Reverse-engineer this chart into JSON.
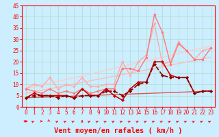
{
  "xlabel": "Vent moyen/en rafales ( km/h )",
  "xlim": [
    -0.5,
    23.5
  ],
  "ylim": [
    0,
    45
  ],
  "yticks": [
    0,
    5,
    10,
    15,
    20,
    25,
    30,
    35,
    40,
    45
  ],
  "xticks": [
    0,
    1,
    2,
    3,
    4,
    5,
    6,
    7,
    8,
    9,
    10,
    11,
    12,
    13,
    14,
    15,
    16,
    17,
    18,
    19,
    20,
    21,
    22,
    23
  ],
  "bg_color": "#cceeff",
  "grid_color": "#aaddcc",
  "series": [
    {
      "x": [
        0,
        1,
        2,
        3,
        4,
        5,
        6,
        7,
        8,
        9,
        10,
        11,
        12,
        13,
        14,
        15,
        16,
        17,
        18,
        19,
        20,
        21,
        22,
        23
      ],
      "y": [
        8,
        10,
        9,
        13,
        8,
        10,
        9,
        13,
        9,
        9,
        10,
        10,
        20,
        14,
        20,
        23,
        37,
        19,
        20,
        29,
        25,
        21,
        25,
        26
      ],
      "color": "#ffaaaa",
      "lw": 1.0,
      "marker": "o",
      "ms": 2.0,
      "zorder": 3,
      "dashed": false
    },
    {
      "x": [
        0,
        1,
        2,
        3,
        4,
        5,
        6,
        7,
        8,
        9,
        10,
        11,
        12,
        13,
        14,
        15,
        16,
        17,
        18,
        19,
        20,
        21,
        22,
        23
      ],
      "y": [
        8,
        7,
        6,
        8,
        6,
        7,
        6,
        8,
        6,
        7,
        8,
        8,
        17,
        17,
        16,
        22,
        41,
        33,
        19,
        28,
        25,
        21,
        21,
        26
      ],
      "color": "#ff7777",
      "lw": 1.0,
      "marker": "o",
      "ms": 2.0,
      "zorder": 3,
      "dashed": false
    },
    {
      "x": [
        0,
        1,
        2,
        3,
        4,
        5,
        6,
        7,
        8,
        9,
        10,
        11,
        12,
        13,
        14,
        15,
        16,
        17,
        18,
        19,
        20,
        21,
        22,
        23
      ],
      "y": [
        4,
        6,
        5,
        5,
        5,
        5,
        4,
        8,
        5,
        5,
        8,
        5,
        3,
        8,
        11,
        11,
        20,
        20,
        14,
        13,
        13,
        6,
        7,
        7
      ],
      "color": "#cc0000",
      "lw": 1.2,
      "marker": "D",
      "ms": 2.0,
      "zorder": 4,
      "dashed": false
    },
    {
      "x": [
        0,
        1,
        2,
        3,
        4,
        5,
        6,
        7,
        8,
        9,
        10,
        11,
        12,
        13,
        14,
        15,
        16,
        17,
        18,
        19,
        20,
        21,
        22,
        23
      ],
      "y": [
        4,
        5,
        5,
        5,
        4,
        5,
        4,
        5,
        5,
        5,
        7,
        7,
        5,
        7,
        10,
        11,
        19,
        14,
        13,
        13,
        13,
        6,
        7,
        7
      ],
      "color": "#880000",
      "lw": 1.2,
      "marker": "D",
      "ms": 2.0,
      "zorder": 4,
      "dashed": true
    },
    {
      "x": [
        0,
        23
      ],
      "y": [
        8,
        27
      ],
      "color": "#ffcccc",
      "lw": 1.0,
      "marker": null,
      "ms": 0,
      "zorder": 2,
      "dashed": false
    },
    {
      "x": [
        0,
        23
      ],
      "y": [
        6,
        22
      ],
      "color": "#ffbbbb",
      "lw": 1.0,
      "marker": null,
      "ms": 0,
      "zorder": 2,
      "dashed": false
    },
    {
      "x": [
        0,
        23
      ],
      "y": [
        4,
        7
      ],
      "color": "#dd5555",
      "lw": 1.0,
      "marker": null,
      "ms": 0,
      "zorder": 2,
      "dashed": false
    }
  ],
  "tick_fontsize": 5.5,
  "axis_fontsize": 7.5
}
